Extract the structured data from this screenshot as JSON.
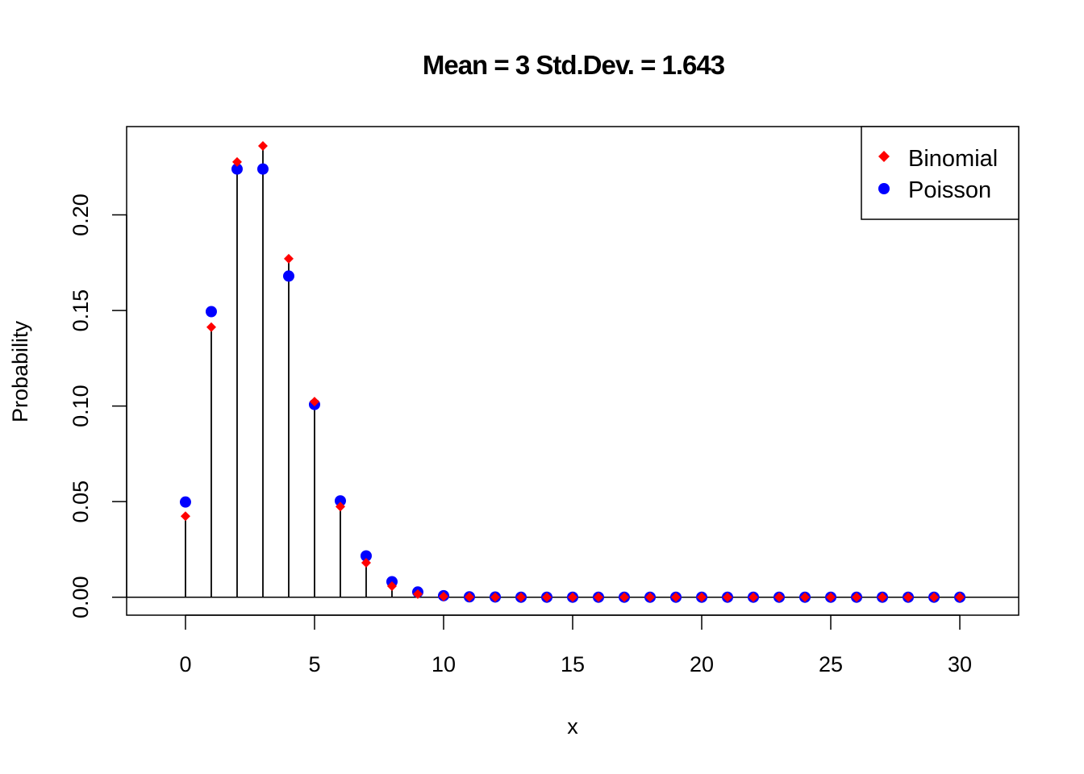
{
  "chart_data": {
    "type": "scatter",
    "title": "Mean = 3 Std.Dev. = 1.643",
    "xlabel": "x",
    "ylabel": "Probability",
    "xlim": [
      -2.28,
      32.28
    ],
    "ylim": [
      -0.0094,
      0.2462
    ],
    "x_ticks": [
      0,
      5,
      10,
      15,
      20,
      25,
      30
    ],
    "y_ticks": [
      0.0,
      0.05,
      0.1,
      0.15,
      0.2
    ],
    "y_tick_labels": [
      "0.00",
      "0.05",
      "0.10",
      "0.15",
      "0.20"
    ],
    "x": [
      0,
      1,
      2,
      3,
      4,
      5,
      6,
      7,
      8,
      9,
      10,
      11,
      12,
      13,
      14,
      15,
      16,
      17,
      18,
      19,
      20,
      21,
      22,
      23,
      24,
      25,
      26,
      27,
      28,
      29,
      30
    ],
    "series": [
      {
        "name": "Binomial",
        "color": "#ff0000",
        "marker": "diamond",
        "values": [
          0.0424,
          0.1413,
          0.2277,
          0.2361,
          0.1771,
          0.1023,
          0.0474,
          0.018,
          0.0058,
          0.0016,
          0.0004,
          0.0001,
          0,
          0,
          0,
          0,
          0,
          0,
          0,
          0,
          0,
          0,
          0,
          0,
          0,
          0,
          0,
          0,
          0,
          0,
          0
        ]
      },
      {
        "name": "Poisson",
        "color": "#0000ff",
        "marker": "circle",
        "values": [
          0.0498,
          0.1494,
          0.224,
          0.224,
          0.168,
          0.1008,
          0.0504,
          0.0216,
          0.0081,
          0.0027,
          0.0008,
          0.0002,
          0.0001,
          0,
          0,
          0,
          0,
          0,
          0,
          0,
          0,
          0,
          0,
          0,
          0,
          0,
          0,
          0,
          0,
          0,
          0
        ]
      }
    ],
    "stems": "vertical lines from 0 to Binomial probability",
    "hline_at": 0,
    "legend": {
      "position": "top-right",
      "entries": [
        "Binomial",
        "Poisson"
      ]
    },
    "grid": false
  }
}
